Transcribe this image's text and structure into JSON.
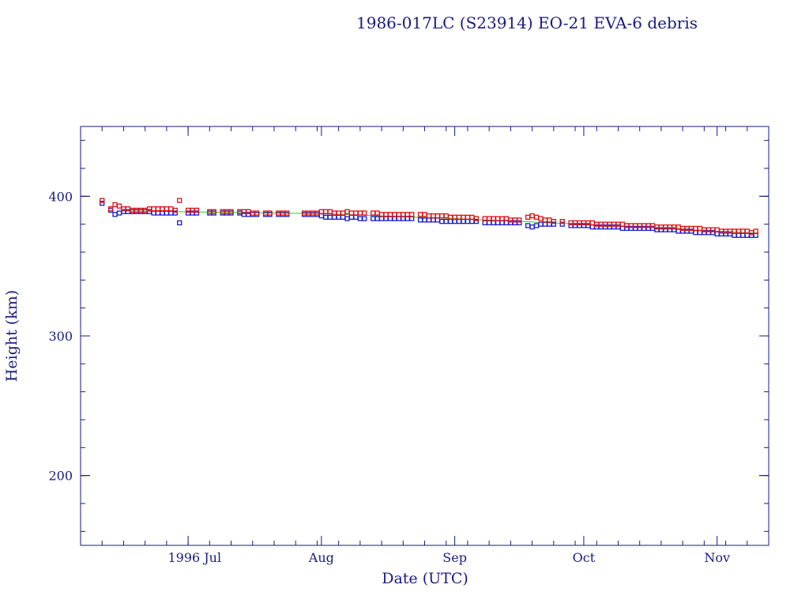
{
  "colors": {
    "frame": "#1a1a80",
    "text": "#1a1a80",
    "perigee": "#1a1acc",
    "apogee": "#dd1111",
    "mean_line": "#33cc33"
  },
  "chart_data": {
    "type": "scatter",
    "title": "1986-017LC (S23914) EO-21 EVA-6 debris",
    "xlabel": "Date (UTC)",
    "ylabel": "Height (km)",
    "xlim": [
      "1996-06-06",
      "1996-11-13"
    ],
    "ylim": [
      150,
      450
    ],
    "yticks": [
      200,
      300,
      400
    ],
    "xticks": [
      {
        "date": "1996-07-01",
        "label": "1996 Jul"
      },
      {
        "date": "1996-08-01",
        "label": "Aug"
      },
      {
        "date": "1996-09-01",
        "label": "Sep"
      },
      {
        "date": "1996-10-01",
        "label": "Oct"
      },
      {
        "date": "1996-11-01",
        "label": "Nov"
      }
    ],
    "grid": false,
    "series": [
      {
        "key": "perigee",
        "marker": "square",
        "points": [
          [
            "1996-06-11",
            395
          ],
          [
            "1996-06-13",
            390
          ],
          [
            "1996-06-14",
            387
          ],
          [
            "1996-06-15",
            388
          ],
          [
            "1996-06-16",
            389
          ],
          [
            "1996-06-17",
            389
          ],
          [
            "1996-06-18",
            389
          ],
          [
            "1996-06-19",
            389
          ],
          [
            "1996-06-20",
            389
          ],
          [
            "1996-06-21",
            389
          ],
          [
            "1996-06-22",
            389
          ],
          [
            "1996-06-23",
            388
          ],
          [
            "1996-06-24",
            388
          ],
          [
            "1996-06-25",
            388
          ],
          [
            "1996-06-26",
            388
          ],
          [
            "1996-06-27",
            388
          ],
          [
            "1996-06-28",
            388
          ],
          [
            "1996-06-29",
            381
          ],
          [
            "1996-07-01",
            388
          ],
          [
            "1996-07-02",
            388
          ],
          [
            "1996-07-03",
            388
          ],
          [
            "1996-07-06",
            388
          ],
          [
            "1996-07-07",
            388
          ],
          [
            "1996-07-09",
            388
          ],
          [
            "1996-07-10",
            388
          ],
          [
            "1996-07-11",
            388
          ],
          [
            "1996-07-13",
            388
          ],
          [
            "1996-07-14",
            387
          ],
          [
            "1996-07-15",
            387
          ],
          [
            "1996-07-16",
            387
          ],
          [
            "1996-07-17",
            387
          ],
          [
            "1996-07-19",
            387
          ],
          [
            "1996-07-20",
            387
          ],
          [
            "1996-07-22",
            387
          ],
          [
            "1996-07-23",
            387
          ],
          [
            "1996-07-24",
            387
          ],
          [
            "1996-07-28",
            387
          ],
          [
            "1996-07-29",
            387
          ],
          [
            "1996-07-30",
            387
          ],
          [
            "1996-07-31",
            387
          ],
          [
            "1996-08-01",
            386
          ],
          [
            "1996-08-02",
            385
          ],
          [
            "1996-08-03",
            385
          ],
          [
            "1996-08-04",
            385
          ],
          [
            "1996-08-05",
            385
          ],
          [
            "1996-08-06",
            385
          ],
          [
            "1996-08-07",
            384
          ],
          [
            "1996-08-08",
            385
          ],
          [
            "1996-08-09",
            385
          ],
          [
            "1996-08-10",
            384
          ],
          [
            "1996-08-11",
            384
          ],
          [
            "1996-08-13",
            384
          ],
          [
            "1996-08-14",
            384
          ],
          [
            "1996-08-15",
            384
          ],
          [
            "1996-08-16",
            384
          ],
          [
            "1996-08-17",
            384
          ],
          [
            "1996-08-18",
            384
          ],
          [
            "1996-08-19",
            384
          ],
          [
            "1996-08-20",
            384
          ],
          [
            "1996-08-21",
            384
          ],
          [
            "1996-08-22",
            384
          ],
          [
            "1996-08-24",
            383
          ],
          [
            "1996-08-25",
            383
          ],
          [
            "1996-08-26",
            383
          ],
          [
            "1996-08-27",
            383
          ],
          [
            "1996-08-28",
            383
          ],
          [
            "1996-08-29",
            382
          ],
          [
            "1996-08-30",
            382
          ],
          [
            "1996-08-31",
            382
          ],
          [
            "1996-09-01",
            382
          ],
          [
            "1996-09-02",
            382
          ],
          [
            "1996-09-03",
            382
          ],
          [
            "1996-09-04",
            382
          ],
          [
            "1996-09-05",
            382
          ],
          [
            "1996-09-06",
            382
          ],
          [
            "1996-09-08",
            381
          ],
          [
            "1996-09-09",
            381
          ],
          [
            "1996-09-10",
            381
          ],
          [
            "1996-09-11",
            381
          ],
          [
            "1996-09-12",
            381
          ],
          [
            "1996-09-13",
            381
          ],
          [
            "1996-09-14",
            381
          ],
          [
            "1996-09-15",
            381
          ],
          [
            "1996-09-16",
            381
          ],
          [
            "1996-09-18",
            379
          ],
          [
            "1996-09-19",
            378
          ],
          [
            "1996-09-20",
            379
          ],
          [
            "1996-09-21",
            380
          ],
          [
            "1996-09-22",
            380
          ],
          [
            "1996-09-23",
            380
          ],
          [
            "1996-09-24",
            380
          ],
          [
            "1996-09-26",
            380
          ],
          [
            "1996-09-28",
            379
          ],
          [
            "1996-09-29",
            379
          ],
          [
            "1996-09-30",
            379
          ],
          [
            "1996-10-01",
            379
          ],
          [
            "1996-10-02",
            379
          ],
          [
            "1996-10-03",
            378
          ],
          [
            "1996-10-04",
            378
          ],
          [
            "1996-10-05",
            378
          ],
          [
            "1996-10-06",
            378
          ],
          [
            "1996-10-07",
            378
          ],
          [
            "1996-10-08",
            378
          ],
          [
            "1996-10-09",
            378
          ],
          [
            "1996-10-10",
            377
          ],
          [
            "1996-10-11",
            377
          ],
          [
            "1996-10-12",
            377
          ],
          [
            "1996-10-13",
            377
          ],
          [
            "1996-10-14",
            377
          ],
          [
            "1996-10-15",
            377
          ],
          [
            "1996-10-16",
            377
          ],
          [
            "1996-10-17",
            377
          ],
          [
            "1996-10-18",
            376
          ],
          [
            "1996-10-19",
            376
          ],
          [
            "1996-10-20",
            376
          ],
          [
            "1996-10-21",
            376
          ],
          [
            "1996-10-22",
            376
          ],
          [
            "1996-10-23",
            375
          ],
          [
            "1996-10-24",
            375
          ],
          [
            "1996-10-25",
            375
          ],
          [
            "1996-10-26",
            375
          ],
          [
            "1996-10-27",
            374
          ],
          [
            "1996-10-28",
            374
          ],
          [
            "1996-10-29",
            374
          ],
          [
            "1996-10-30",
            374
          ],
          [
            "1996-10-31",
            374
          ],
          [
            "1996-11-01",
            373
          ],
          [
            "1996-11-02",
            373
          ],
          [
            "1996-11-03",
            373
          ],
          [
            "1996-11-04",
            373
          ],
          [
            "1996-11-05",
            372
          ],
          [
            "1996-11-06",
            372
          ],
          [
            "1996-11-07",
            372
          ],
          [
            "1996-11-08",
            372
          ],
          [
            "1996-11-09",
            372
          ],
          [
            "1996-11-10",
            372
          ]
        ]
      },
      {
        "key": "apogee",
        "marker": "square",
        "points": [
          [
            "1996-06-11",
            397
          ],
          [
            "1996-06-13",
            391
          ],
          [
            "1996-06-14",
            394
          ],
          [
            "1996-06-15",
            393
          ],
          [
            "1996-06-16",
            391
          ],
          [
            "1996-06-17",
            391
          ],
          [
            "1996-06-18",
            390
          ],
          [
            "1996-06-19",
            390
          ],
          [
            "1996-06-20",
            390
          ],
          [
            "1996-06-21",
            390
          ],
          [
            "1996-06-22",
            391
          ],
          [
            "1996-06-23",
            391
          ],
          [
            "1996-06-24",
            391
          ],
          [
            "1996-06-25",
            391
          ],
          [
            "1996-06-26",
            391
          ],
          [
            "1996-06-27",
            391
          ],
          [
            "1996-06-28",
            390
          ],
          [
            "1996-06-29",
            397
          ],
          [
            "1996-07-01",
            390
          ],
          [
            "1996-07-02",
            390
          ],
          [
            "1996-07-03",
            390
          ],
          [
            "1996-07-06",
            389
          ],
          [
            "1996-07-07",
            389
          ],
          [
            "1996-07-09",
            389
          ],
          [
            "1996-07-10",
            389
          ],
          [
            "1996-07-11",
            389
          ],
          [
            "1996-07-13",
            389
          ],
          [
            "1996-07-14",
            389
          ],
          [
            "1996-07-15",
            389
          ],
          [
            "1996-07-16",
            388
          ],
          [
            "1996-07-17",
            388
          ],
          [
            "1996-07-19",
            388
          ],
          [
            "1996-07-20",
            388
          ],
          [
            "1996-07-22",
            388
          ],
          [
            "1996-07-23",
            388
          ],
          [
            "1996-07-24",
            388
          ],
          [
            "1996-07-28",
            388
          ],
          [
            "1996-07-29",
            388
          ],
          [
            "1996-07-30",
            388
          ],
          [
            "1996-07-31",
            388
          ],
          [
            "1996-08-01",
            389
          ],
          [
            "1996-08-02",
            389
          ],
          [
            "1996-08-03",
            389
          ],
          [
            "1996-08-04",
            388
          ],
          [
            "1996-08-05",
            388
          ],
          [
            "1996-08-06",
            388
          ],
          [
            "1996-08-07",
            389
          ],
          [
            "1996-08-08",
            388
          ],
          [
            "1996-08-09",
            388
          ],
          [
            "1996-08-10",
            388
          ],
          [
            "1996-08-11",
            388
          ],
          [
            "1996-08-13",
            388
          ],
          [
            "1996-08-14",
            388
          ],
          [
            "1996-08-15",
            387
          ],
          [
            "1996-08-16",
            387
          ],
          [
            "1996-08-17",
            387
          ],
          [
            "1996-08-18",
            387
          ],
          [
            "1996-08-19",
            387
          ],
          [
            "1996-08-20",
            387
          ],
          [
            "1996-08-21",
            387
          ],
          [
            "1996-08-22",
            387
          ],
          [
            "1996-08-24",
            387
          ],
          [
            "1996-08-25",
            387
          ],
          [
            "1996-08-26",
            386
          ],
          [
            "1996-08-27",
            386
          ],
          [
            "1996-08-28",
            386
          ],
          [
            "1996-08-29",
            386
          ],
          [
            "1996-08-30",
            386
          ],
          [
            "1996-08-31",
            385
          ],
          [
            "1996-09-01",
            385
          ],
          [
            "1996-09-02",
            385
          ],
          [
            "1996-09-03",
            385
          ],
          [
            "1996-09-04",
            385
          ],
          [
            "1996-09-05",
            385
          ],
          [
            "1996-09-06",
            384
          ],
          [
            "1996-09-08",
            384
          ],
          [
            "1996-09-09",
            384
          ],
          [
            "1996-09-10",
            384
          ],
          [
            "1996-09-11",
            384
          ],
          [
            "1996-09-12",
            384
          ],
          [
            "1996-09-13",
            384
          ],
          [
            "1996-09-14",
            383
          ],
          [
            "1996-09-15",
            383
          ],
          [
            "1996-09-16",
            383
          ],
          [
            "1996-09-18",
            385
          ],
          [
            "1996-09-19",
            386
          ],
          [
            "1996-09-20",
            385
          ],
          [
            "1996-09-21",
            384
          ],
          [
            "1996-09-22",
            383
          ],
          [
            "1996-09-23",
            383
          ],
          [
            "1996-09-24",
            382
          ],
          [
            "1996-09-26",
            382
          ],
          [
            "1996-09-28",
            381
          ],
          [
            "1996-09-29",
            381
          ],
          [
            "1996-09-30",
            381
          ],
          [
            "1996-10-01",
            381
          ],
          [
            "1996-10-02",
            381
          ],
          [
            "1996-10-03",
            381
          ],
          [
            "1996-10-04",
            380
          ],
          [
            "1996-10-05",
            380
          ],
          [
            "1996-10-06",
            380
          ],
          [
            "1996-10-07",
            380
          ],
          [
            "1996-10-08",
            380
          ],
          [
            "1996-10-09",
            380
          ],
          [
            "1996-10-10",
            380
          ],
          [
            "1996-10-11",
            379
          ],
          [
            "1996-10-12",
            379
          ],
          [
            "1996-10-13",
            379
          ],
          [
            "1996-10-14",
            379
          ],
          [
            "1996-10-15",
            379
          ],
          [
            "1996-10-16",
            379
          ],
          [
            "1996-10-17",
            379
          ],
          [
            "1996-10-18",
            378
          ],
          [
            "1996-10-19",
            378
          ],
          [
            "1996-10-20",
            378
          ],
          [
            "1996-10-21",
            378
          ],
          [
            "1996-10-22",
            378
          ],
          [
            "1996-10-23",
            378
          ],
          [
            "1996-10-24",
            377
          ],
          [
            "1996-10-25",
            377
          ],
          [
            "1996-10-26",
            377
          ],
          [
            "1996-10-27",
            377
          ],
          [
            "1996-10-28",
            377
          ],
          [
            "1996-10-29",
            376
          ],
          [
            "1996-10-30",
            376
          ],
          [
            "1996-10-31",
            376
          ],
          [
            "1996-11-01",
            376
          ],
          [
            "1996-11-02",
            375
          ],
          [
            "1996-11-03",
            375
          ],
          [
            "1996-11-04",
            375
          ],
          [
            "1996-11-05",
            375
          ],
          [
            "1996-11-06",
            375
          ],
          [
            "1996-11-07",
            375
          ],
          [
            "1996-11-08",
            375
          ],
          [
            "1996-11-09",
            374
          ],
          [
            "1996-11-10",
            375
          ]
        ]
      }
    ],
    "mean_line": {
      "points": [
        [
          "1996-06-16",
          389.5
        ],
        [
          "1996-08-01",
          387.5
        ],
        [
          "1996-09-01",
          384
        ],
        [
          "1996-10-01",
          380
        ],
        [
          "1996-11-10",
          373.5
        ]
      ]
    }
  }
}
